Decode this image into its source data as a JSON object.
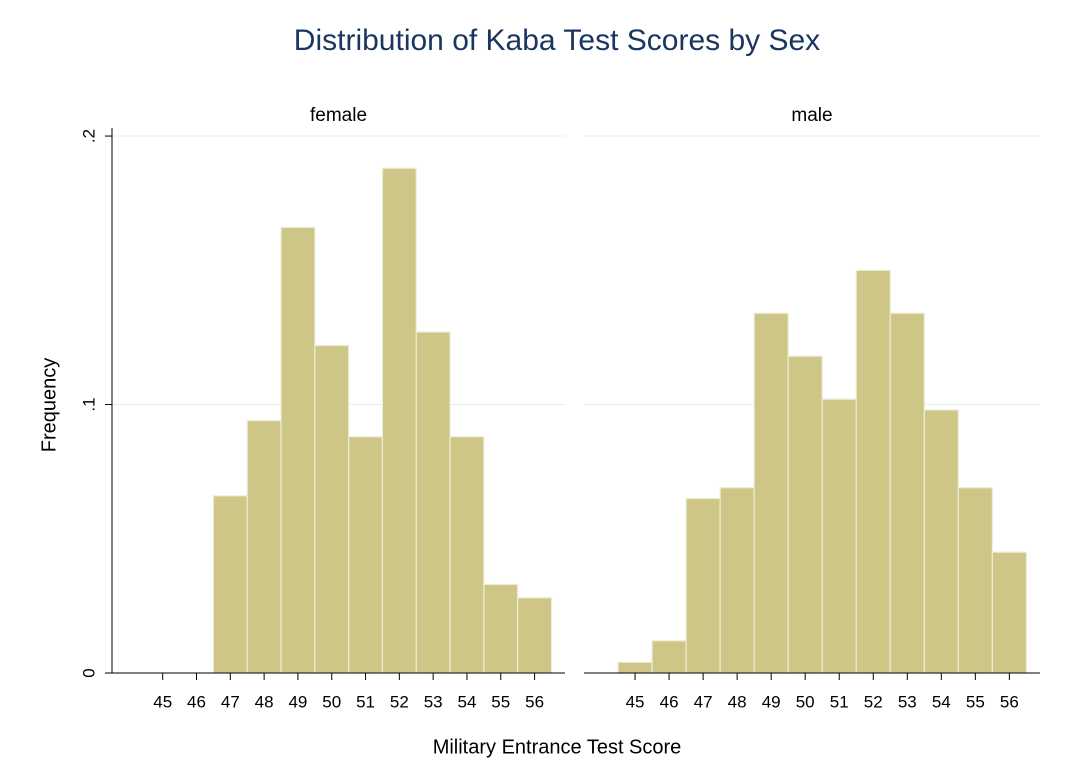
{
  "title": "Distribution of Kaba Test Scores by Sex",
  "x_label": "Military Entrance Test Score",
  "y_label": "Frequency",
  "chart_data": [
    {
      "type": "histogram",
      "title": "female",
      "color": "#cdc687",
      "bins": [
        46.5,
        47.5,
        48.5,
        49.5,
        50.5,
        51.5,
        52.5,
        53.5,
        54.5,
        55.5,
        56.5
      ],
      "values": [
        0.066,
        0.094,
        0.166,
        0.122,
        0.088,
        0.188,
        0.127,
        0.088,
        0.033,
        0.028
      ],
      "xlim": [
        43.5,
        56.9
      ],
      "xticks": [
        45,
        46,
        47,
        48,
        49,
        50,
        51,
        52,
        53,
        54,
        55,
        56
      ],
      "ylim": [
        0,
        0.203
      ],
      "yticks": [
        0,
        {
          "value": 0.1,
          "label": ".1"
        },
        {
          "value": 0.2,
          "label": ".2"
        }
      ],
      "grid": true
    },
    {
      "type": "histogram",
      "title": "male",
      "color": "#cdc687",
      "bins": [
        44.5,
        45.5,
        46.5,
        47.5,
        48.5,
        49.5,
        50.5,
        51.5,
        52.5,
        53.5,
        54.5,
        55.5,
        56.5
      ],
      "values": [
        0.004,
        0.012,
        0.065,
        0.069,
        0.134,
        0.118,
        0.102,
        0.15,
        0.134,
        0.098,
        0.069,
        0.045
      ],
      "xlim": [
        43.5,
        56.9
      ],
      "xticks": [
        45,
        46,
        47,
        48,
        49,
        50,
        51,
        52,
        53,
        54,
        55,
        56
      ],
      "ylim": [
        0,
        0.203
      ],
      "yticks": [
        0,
        {
          "value": 0.1,
          "label": ".1"
        },
        {
          "value": 0.2,
          "label": ".2"
        }
      ],
      "grid": true
    }
  ]
}
